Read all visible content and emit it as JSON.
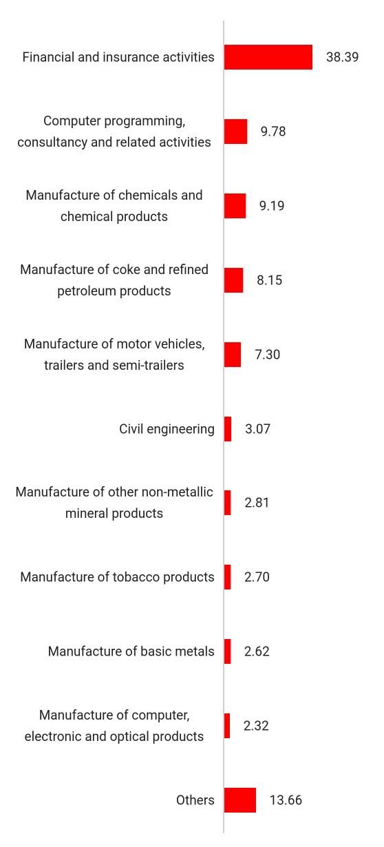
{
  "chart_data": {
    "type": "barh",
    "categories": [
      "Financial and insurance activities",
      "Computer programming, consultancy and related activities",
      "Manufacture of chemicals and chemical products",
      "Manufacture of coke and refined petroleum products",
      "Manufacture of motor vehicles, trailers and semi-trailers",
      "Civil engineering",
      "Manufacture of other non-metallic mineral products",
      "Manufacture of tobacco products",
      "Manufacture of basic metals",
      "Manufacture of computer, electronic and optical products",
      "Others"
    ],
    "values": [
      38.39,
      9.78,
      9.19,
      8.15,
      7.3,
      3.07,
      2.81,
      2.7,
      2.62,
      2.32,
      13.66
    ],
    "value_labels": [
      "38.39",
      "9.78",
      "9.19",
      "8.15",
      "7.30",
      "3.07",
      "2.81",
      "2.70",
      "2.62",
      "2.32",
      "13.66"
    ],
    "color": "#ff0000"
  }
}
